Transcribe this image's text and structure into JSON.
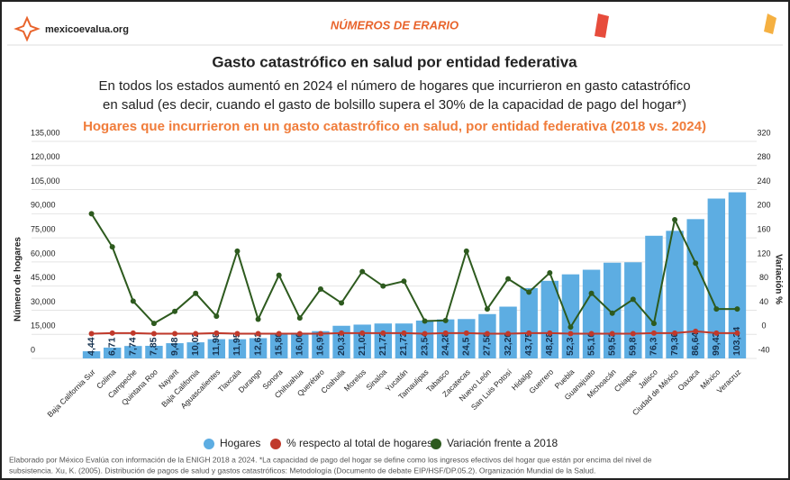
{
  "header": {
    "site": "mexicoevalua.org",
    "brand": "NÚMEROS DE ERARIO"
  },
  "chart_data": {
    "type": "bar",
    "title": "Gasto catastrófico en salud por entidad federativa",
    "subtitle": [
      "En todos los estados aumentó en 2024 el número de hogares que incurrieron en gasto catastrófico",
      "en salud (es decir, cuando el gasto de bolsillo supera el 30% de la capacidad de pago del hogar*)"
    ],
    "chart_title": "Hogares que incurrieron en un gasto catastrófico en salud, por entidad federativa (2018 vs. 2024)",
    "ylabel": "Número de hogares",
    "y2label": "Variación %",
    "categories": [
      "Baja California Sur",
      "Colima",
      "Campeche",
      "Quintana Roo",
      "Nayarit",
      "Baja California",
      "Aguascalientes",
      "Tlaxcala",
      "Durango",
      "Sonora",
      "Chihuahua",
      "Querétaro",
      "Coahuila",
      "Morelos",
      "Sinaloa",
      "Yucatán",
      "Tamaulipas",
      "Tabasco",
      "Zacatecas",
      "Nuevo León",
      "San Luis Potosí",
      "Hidalgo",
      "Guerrero",
      "Puebla",
      "Guanajuato",
      "Michoacán",
      "Chiapas",
      "Jalisco",
      "Ciudad de México",
      "Oaxaca",
      "México",
      "Veracruz"
    ],
    "series": [
      {
        "name": "Hogares",
        "type": "bar",
        "color": "#5dade2",
        "values": [
          4440,
          6710,
          7740,
          7850,
          9480,
          10020,
          11980,
          11950,
          12620,
          15800,
          16000,
          16970,
          20310,
          21030,
          21730,
          21730,
          23540,
          24280,
          24500,
          27580,
          32200,
          43750,
          48280,
          52300,
          55160,
          59530,
          59800,
          76300,
          79360,
          86640,
          99430,
          103340
        ],
        "value_labels": [
          "4,44",
          "6,71",
          "7,74",
          "7,85",
          "9,48",
          "10,02",
          "11,98",
          "11,95",
          "12,62",
          "15,80",
          "16,00",
          "16,97",
          "20,31",
          "21,03",
          "21,73",
          "21,73",
          "23,54",
          "24,28",
          "24,5",
          "27,58",
          "32,20",
          "43,75",
          "48,28",
          "52,3",
          "55,16",
          "59,53",
          "59,8",
          "76,3",
          "79,36",
          "86,64",
          "99,43",
          "103,34"
        ]
      },
      {
        "name": "% respecto al total de hogares",
        "type": "line",
        "axis": "y2",
        "color": "#c0392b",
        "values": [
          1,
          2,
          2,
          1,
          1,
          1,
          2,
          1,
          1,
          1,
          1,
          1,
          2,
          2,
          2,
          2,
          1,
          2,
          2,
          1,
          1,
          2,
          2,
          1,
          1,
          1,
          1,
          2,
          2,
          5,
          2,
          2
        ]
      },
      {
        "name": "Variación frente a 2018",
        "type": "line",
        "axis": "y2",
        "color": "#2d5a1e",
        "values": [
          200,
          145,
          55,
          18,
          38,
          68,
          30,
          138,
          25,
          98,
          27,
          75,
          52,
          104,
          80,
          88,
          22,
          23,
          138,
          42,
          92,
          70,
          102,
          12,
          68,
          35,
          58,
          18,
          190,
          118,
          42,
          42
        ]
      }
    ],
    "ylim": [
      0,
      135000
    ],
    "yticks": [
      0,
      {
        "value": 15000,
        "label": "15,000"
      },
      {
        "value": 30000,
        "label": "30,000"
      },
      {
        "value": 45000,
        "label": "45,000"
      },
      {
        "value": 60000,
        "label": "60,000"
      },
      {
        "value": 75000,
        "label": "75,000"
      },
      {
        "value": 90000,
        "label": "90,000"
      },
      {
        "value": 105000,
        "label": "105,000"
      },
      {
        "value": 120000,
        "label": "120,000"
      },
      {
        "value": 135000,
        "label": "135,000"
      }
    ],
    "y2lim": [
      -40,
      320
    ],
    "y2ticks": [
      -40,
      0,
      40,
      80,
      120,
      160,
      200,
      240,
      280,
      320
    ],
    "grid": true,
    "legend": "bottom",
    "footnote": [
      "Elaborado por México Evalúa con información de la ENIGH 2018 a 2024. *La capacidad de pago del hogar se define como los ingresos efectivos del hogar que están por encima del nivel de",
      "subsistencia. Xu, K. (2005). Distribución de pagos de salud y gastos catastróficos: Metodología (Documento de debate EIP/HSF/DP.05.2). Organización Mundial de la Salud."
    ]
  }
}
